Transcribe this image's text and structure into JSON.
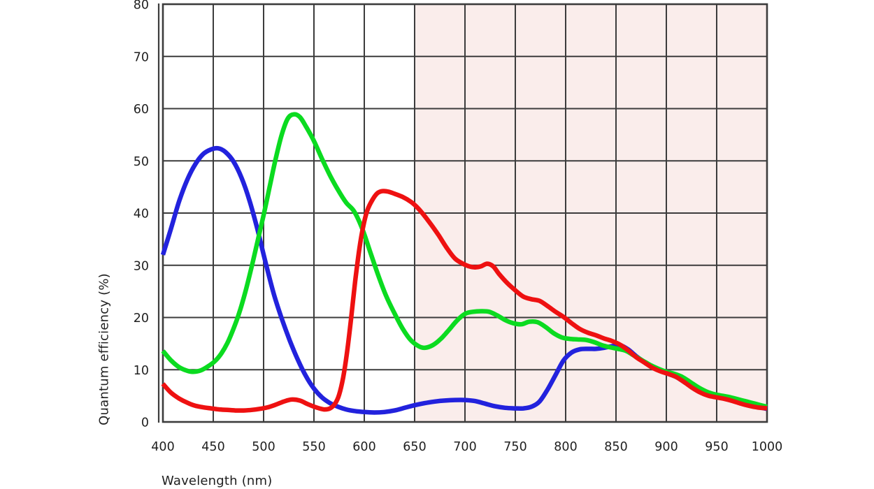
{
  "chart_data": {
    "type": "line",
    "title": "",
    "xlabel": "Wavelength (nm)",
    "ylabel": "Quantum efficiency (%)",
    "xlim": [
      400,
      1000
    ],
    "ylim": [
      0,
      80
    ],
    "x_ticks": [
      400,
      450,
      500,
      550,
      600,
      650,
      700,
      750,
      800,
      850,
      900,
      950,
      1000
    ],
    "y_ticks": [
      0,
      10,
      20,
      30,
      40,
      50,
      60,
      70,
      80
    ],
    "grid": true,
    "grid_color": "#3c3c3c",
    "legend_position": "none",
    "background_band": {
      "name": "infrared-region",
      "x_start": 650,
      "x_end": 1000,
      "color": "#faedeb"
    },
    "series": [
      {
        "name": "blue-channel",
        "color": "#2222dd",
        "points": [
          [
            400,
            32
          ],
          [
            408,
            37
          ],
          [
            416,
            42.2
          ],
          [
            424,
            46.3
          ],
          [
            432,
            49.3
          ],
          [
            440,
            51.3
          ],
          [
            448,
            52.2
          ],
          [
            455,
            52.4
          ],
          [
            462,
            51.7
          ],
          [
            470,
            49.9
          ],
          [
            478,
            46.8
          ],
          [
            486,
            42.4
          ],
          [
            494,
            36.8
          ],
          [
            502,
            30.5
          ],
          [
            510,
            24.6
          ],
          [
            518,
            19.8
          ],
          [
            526,
            15.6
          ],
          [
            534,
            11.9
          ],
          [
            542,
            8.8
          ],
          [
            550,
            6.4
          ],
          [
            558,
            4.7
          ],
          [
            566,
            3.6
          ],
          [
            574,
            2.9
          ],
          [
            582,
            2.4
          ],
          [
            590,
            2.1
          ],
          [
            600,
            1.9
          ],
          [
            610,
            1.8
          ],
          [
            620,
            1.9
          ],
          [
            630,
            2.2
          ],
          [
            640,
            2.7
          ],
          [
            650,
            3.2
          ],
          [
            660,
            3.6
          ],
          [
            670,
            3.9
          ],
          [
            680,
            4.1
          ],
          [
            690,
            4.2
          ],
          [
            700,
            4.2
          ],
          [
            710,
            4.0
          ],
          [
            720,
            3.5
          ],
          [
            730,
            3.0
          ],
          [
            740,
            2.7
          ],
          [
            750,
            2.6
          ],
          [
            758,
            2.6
          ],
          [
            766,
            2.9
          ],
          [
            774,
            3.9
          ],
          [
            782,
            6.2
          ],
          [
            790,
            9.0
          ],
          [
            798,
            11.8
          ],
          [
            806,
            13.3
          ],
          [
            814,
            13.9
          ],
          [
            822,
            14.0
          ],
          [
            830,
            14.0
          ],
          [
            838,
            14.2
          ],
          [
            846,
            14.5
          ],
          [
            854,
            14.7
          ],
          [
            862,
            13.9
          ],
          [
            870,
            12.6
          ],
          [
            878,
            11.5
          ],
          [
            886,
            10.6
          ],
          [
            894,
            9.8
          ],
          [
            902,
            9.2
          ],
          [
            910,
            8.6
          ],
          [
            918,
            7.6
          ],
          [
            926,
            6.6
          ],
          [
            934,
            5.7
          ],
          [
            942,
            5.1
          ],
          [
            950,
            4.8
          ],
          [
            958,
            4.5
          ],
          [
            966,
            4.1
          ],
          [
            974,
            3.6
          ],
          [
            982,
            3.2
          ],
          [
            990,
            2.9
          ],
          [
            1000,
            2.5
          ]
        ]
      },
      {
        "name": "green-channel",
        "color": "#0bdb20",
        "points": [
          [
            400,
            13.6
          ],
          [
            408,
            11.8
          ],
          [
            416,
            10.5
          ],
          [
            424,
            9.8
          ],
          [
            430,
            9.6
          ],
          [
            438,
            9.9
          ],
          [
            446,
            10.8
          ],
          [
            452,
            11.7
          ],
          [
            458,
            13.1
          ],
          [
            464,
            15.1
          ],
          [
            470,
            17.8
          ],
          [
            476,
            21
          ],
          [
            482,
            25
          ],
          [
            488,
            29.6
          ],
          [
            494,
            34.6
          ],
          [
            500,
            39.6
          ],
          [
            506,
            45
          ],
          [
            512,
            50.4
          ],
          [
            518,
            55
          ],
          [
            524,
            58.1
          ],
          [
            530,
            58.9
          ],
          [
            536,
            58.4
          ],
          [
            542,
            56.6
          ],
          [
            550,
            53.8
          ],
          [
            558,
            50.4
          ],
          [
            566,
            47.2
          ],
          [
            574,
            44.4
          ],
          [
            582,
            42
          ],
          [
            590,
            40.3
          ],
          [
            598,
            37
          ],
          [
            606,
            32.5
          ],
          [
            614,
            28
          ],
          [
            622,
            24
          ],
          [
            630,
            20.8
          ],
          [
            638,
            17.9
          ],
          [
            646,
            15.7
          ],
          [
            654,
            14.5
          ],
          [
            660,
            14.2
          ],
          [
            668,
            14.7
          ],
          [
            676,
            15.9
          ],
          [
            684,
            17.6
          ],
          [
            692,
            19.4
          ],
          [
            700,
            20.7
          ],
          [
            708,
            21.1
          ],
          [
            716,
            21.2
          ],
          [
            724,
            21.1
          ],
          [
            732,
            20.4
          ],
          [
            740,
            19.5
          ],
          [
            748,
            18.9
          ],
          [
            756,
            18.7
          ],
          [
            764,
            19.2
          ],
          [
            772,
            19.1
          ],
          [
            780,
            18.2
          ],
          [
            788,
            17
          ],
          [
            796,
            16.2
          ],
          [
            804,
            15.9
          ],
          [
            812,
            15.8
          ],
          [
            820,
            15.7
          ],
          [
            828,
            15.3
          ],
          [
            836,
            14.7
          ],
          [
            844,
            14.3
          ],
          [
            852,
            14
          ],
          [
            860,
            13.6
          ],
          [
            868,
            12.7
          ],
          [
            876,
            11.8
          ],
          [
            884,
            10.9
          ],
          [
            892,
            10.2
          ],
          [
            900,
            9.6
          ],
          [
            908,
            9.2
          ],
          [
            916,
            8.6
          ],
          [
            924,
            7.6
          ],
          [
            932,
            6.6
          ],
          [
            940,
            5.8
          ],
          [
            948,
            5.3
          ],
          [
            956,
            5
          ],
          [
            964,
            4.7
          ],
          [
            972,
            4.3
          ],
          [
            980,
            3.9
          ],
          [
            988,
            3.5
          ],
          [
            1000,
            2.9
          ]
        ]
      },
      {
        "name": "red-channel",
        "color": "#ee1111",
        "points": [
          [
            400,
            7.3
          ],
          [
            408,
            5.6
          ],
          [
            416,
            4.5
          ],
          [
            424,
            3.7
          ],
          [
            432,
            3.1
          ],
          [
            440,
            2.8
          ],
          [
            448,
            2.6
          ],
          [
            456,
            2.4
          ],
          [
            464,
            2.3
          ],
          [
            472,
            2.2
          ],
          [
            480,
            2.2
          ],
          [
            488,
            2.3
          ],
          [
            496,
            2.5
          ],
          [
            504,
            2.8
          ],
          [
            512,
            3.3
          ],
          [
            520,
            3.9
          ],
          [
            528,
            4.3
          ],
          [
            536,
            4.1
          ],
          [
            544,
            3.4
          ],
          [
            552,
            2.8
          ],
          [
            560,
            2.4
          ],
          [
            566,
            2.6
          ],
          [
            571,
            3.5
          ],
          [
            575,
            5.2
          ],
          [
            579,
            8.5
          ],
          [
            583,
            13.5
          ],
          [
            587,
            20
          ],
          [
            591,
            27
          ],
          [
            595,
            33
          ],
          [
            599,
            37.5
          ],
          [
            603,
            40.5
          ],
          [
            608,
            42.5
          ],
          [
            613,
            43.8
          ],
          [
            618,
            44.2
          ],
          [
            624,
            44.1
          ],
          [
            630,
            43.7
          ],
          [
            638,
            43.1
          ],
          [
            646,
            42.2
          ],
          [
            652,
            41.2
          ],
          [
            658,
            39.9
          ],
          [
            666,
            37.9
          ],
          [
            674,
            35.7
          ],
          [
            682,
            33.3
          ],
          [
            690,
            31.3
          ],
          [
            698,
            30.3
          ],
          [
            704,
            29.8
          ],
          [
            710,
            29.6
          ],
          [
            716,
            29.8
          ],
          [
            722,
            30.3
          ],
          [
            728,
            29.8
          ],
          [
            734,
            28.3
          ],
          [
            742,
            26.6
          ],
          [
            750,
            25.2
          ],
          [
            758,
            24
          ],
          [
            766,
            23.5
          ],
          [
            774,
            23.2
          ],
          [
            782,
            22.2
          ],
          [
            790,
            21.1
          ],
          [
            798,
            20.1
          ],
          [
            806,
            18.9
          ],
          [
            814,
            17.8
          ],
          [
            822,
            17.1
          ],
          [
            830,
            16.6
          ],
          [
            838,
            16
          ],
          [
            846,
            15.5
          ],
          [
            854,
            14.8
          ],
          [
            862,
            13.7
          ],
          [
            870,
            12.4
          ],
          [
            878,
            11.4
          ],
          [
            886,
            10.4
          ],
          [
            894,
            9.7
          ],
          [
            902,
            9.2
          ],
          [
            910,
            8.6
          ],
          [
            918,
            7.6
          ],
          [
            926,
            6.5
          ],
          [
            934,
            5.6
          ],
          [
            942,
            5
          ],
          [
            950,
            4.7
          ],
          [
            958,
            4.4
          ],
          [
            966,
            4
          ],
          [
            974,
            3.5
          ],
          [
            982,
            3.1
          ],
          [
            990,
            2.8
          ],
          [
            1000,
            2.6
          ]
        ]
      }
    ]
  }
}
